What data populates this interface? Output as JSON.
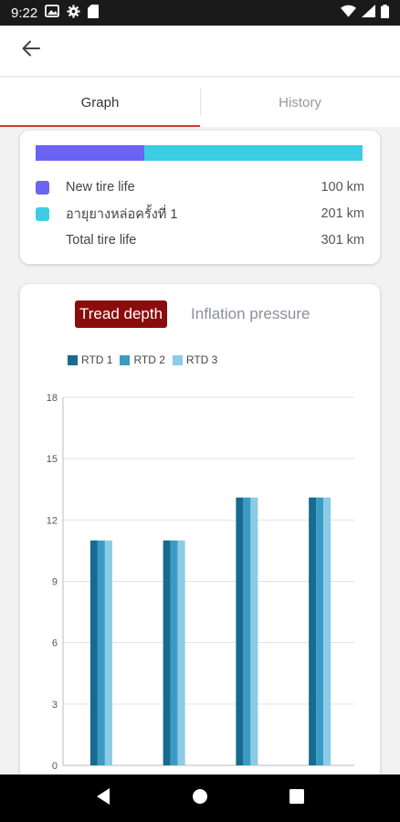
{
  "status_bar": {
    "time": "9:22",
    "icons_left": [
      "image-icon",
      "gear-icon",
      "sd-card-icon"
    ],
    "icons_right": [
      "wifi-icon",
      "signal-icon",
      "battery-icon"
    ]
  },
  "tabs": [
    {
      "label": "Graph",
      "active": true
    },
    {
      "label": "History",
      "active": false
    }
  ],
  "tire_life": {
    "rows": [
      {
        "label": "New tire life",
        "value": "100 km",
        "color": "#6b63f2"
      },
      {
        "label": "อายุยางหล่อครั้งที่ 1",
        "value": "201 km",
        "color": "#3ccde4"
      },
      {
        "label": "Total tire life",
        "value": "301 km",
        "color": ""
      }
    ]
  },
  "chart_toggle": {
    "active_label": "Tread depth",
    "inactive_label": "Inflation pressure"
  },
  "chart_data": {
    "type": "bar",
    "title": "",
    "xlabel": "",
    "ylabel": "",
    "categories": [
      "",
      "",
      "",
      ""
    ],
    "ylim": [
      0,
      18
    ],
    "yticks": [
      0,
      3,
      6,
      9,
      12,
      15,
      18
    ],
    "grid": true,
    "legend_position": "top-left",
    "series": [
      {
        "name": "RTD 1",
        "color": "#166b8f",
        "values": [
          11,
          11,
          13.1,
          13.1
        ]
      },
      {
        "name": "RTD 2",
        "color": "#3a9cc5",
        "values": [
          11,
          11,
          13.1,
          13.1
        ]
      },
      {
        "name": "RTD 3",
        "color": "#8ccbe6",
        "values": [
          11,
          11,
          13.1,
          13.1
        ]
      }
    ]
  },
  "nav_bar": {
    "icons": [
      "back-triangle-icon",
      "home-circle-icon",
      "recents-square-icon"
    ]
  }
}
